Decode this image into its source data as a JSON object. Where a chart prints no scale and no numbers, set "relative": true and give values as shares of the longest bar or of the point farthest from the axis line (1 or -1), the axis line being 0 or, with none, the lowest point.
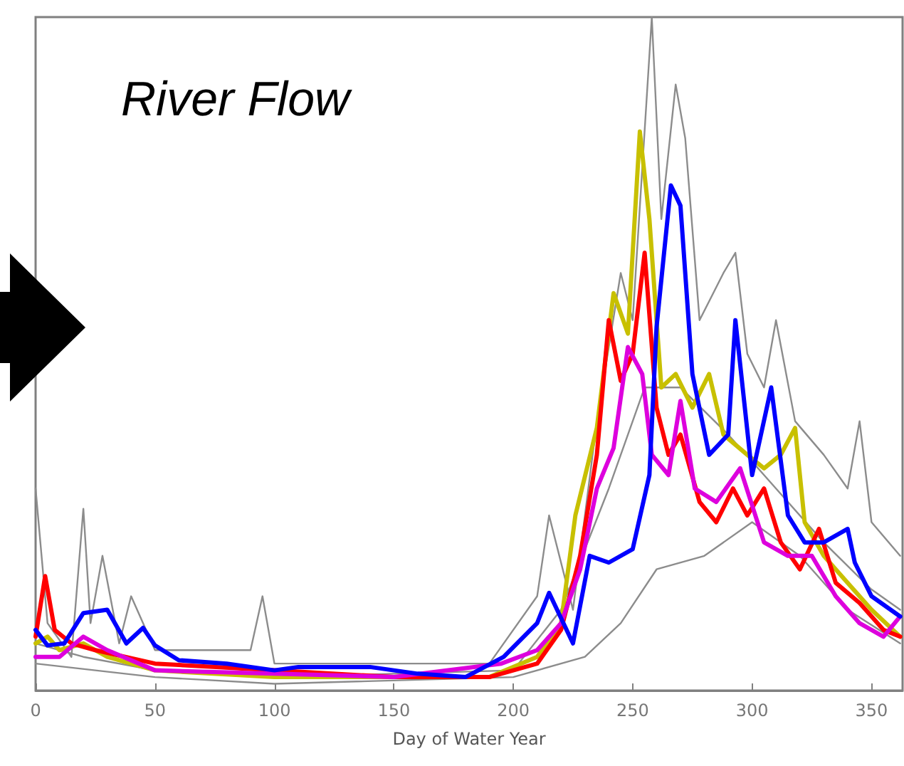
{
  "chart_data": {
    "type": "line",
    "title": "River Flow",
    "xlabel": "Day of Water Year",
    "relative": true,
    "xlim": [
      0,
      363
    ],
    "xticks": [
      0,
      50,
      100,
      150,
      200,
      250,
      300,
      350
    ],
    "tick_labels": "x",
    "marker": "none",
    "line_style": "solid",
    "series": [
      {
        "color": "#8c8c8c",
        "x": [
          0,
          5,
          15,
          20,
          23,
          28,
          35,
          40,
          50,
          90,
          95,
          100,
          150,
          190,
          210,
          215,
          225,
          235,
          245,
          250,
          258,
          262,
          268,
          272,
          278,
          288,
          293,
          298,
          305,
          310,
          318,
          330,
          340,
          345,
          350,
          362
        ],
        "values": [
          0.3,
          0.1,
          0.05,
          0.27,
          0.1,
          0.2,
          0.07,
          0.14,
          0.06,
          0.06,
          0.14,
          0.04,
          0.04,
          0.04,
          0.14,
          0.26,
          0.12,
          0.4,
          0.62,
          0.55,
          1.0,
          0.7,
          0.9,
          0.82,
          0.55,
          0.62,
          0.65,
          0.5,
          0.45,
          0.55,
          0.4,
          0.35,
          0.3,
          0.4,
          0.25,
          0.2
        ]
      },
      {
        "color": "#8c8c8c",
        "x": [
          0,
          20,
          50,
          100,
          200,
          220,
          240,
          255,
          270,
          290,
          310,
          330,
          350,
          362
        ],
        "values": [
          0.07,
          0.05,
          0.03,
          0.02,
          0.03,
          0.12,
          0.3,
          0.45,
          0.45,
          0.38,
          0.3,
          0.22,
          0.15,
          0.12
        ]
      },
      {
        "color": "#8c8c8c",
        "x": [
          0,
          50,
          100,
          200,
          230,
          245,
          260,
          280,
          300,
          320,
          340,
          362
        ],
        "values": [
          0.04,
          0.02,
          0.01,
          0.02,
          0.05,
          0.1,
          0.18,
          0.2,
          0.25,
          0.2,
          0.12,
          0.07
        ]
      },
      {
        "color": "#c8c000",
        "x": [
          0,
          5,
          10,
          20,
          30,
          50,
          100,
          150,
          190,
          210,
          220,
          226,
          235,
          242,
          248,
          253,
          257,
          262,
          268,
          275,
          282,
          288,
          298,
          305,
          312,
          318,
          322,
          330,
          340,
          350,
          362
        ],
        "values": [
          0.07,
          0.08,
          0.06,
          0.07,
          0.05,
          0.03,
          0.02,
          0.02,
          0.02,
          0.05,
          0.1,
          0.26,
          0.39,
          0.59,
          0.53,
          0.83,
          0.7,
          0.45,
          0.47,
          0.42,
          0.47,
          0.38,
          0.35,
          0.33,
          0.35,
          0.39,
          0.25,
          0.2,
          0.16,
          0.12,
          0.08
        ]
      },
      {
        "color": "#ff0000",
        "x": [
          0,
          4,
          8,
          15,
          25,
          50,
          100,
          150,
          190,
          210,
          220,
          228,
          235,
          240,
          245,
          250,
          255,
          260,
          265,
          270,
          278,
          285,
          292,
          298,
          305,
          312,
          320,
          328,
          335,
          345,
          355,
          362
        ],
        "values": [
          0.08,
          0.17,
          0.09,
          0.07,
          0.06,
          0.04,
          0.03,
          0.02,
          0.02,
          0.04,
          0.09,
          0.2,
          0.35,
          0.55,
          0.46,
          0.5,
          0.65,
          0.42,
          0.35,
          0.38,
          0.28,
          0.25,
          0.3,
          0.26,
          0.3,
          0.22,
          0.18,
          0.24,
          0.16,
          0.13,
          0.09,
          0.08
        ]
      },
      {
        "color": "#dd00dd",
        "x": [
          0,
          10,
          20,
          30,
          50,
          100,
          150,
          195,
          210,
          220,
          228,
          235,
          242,
          248,
          254,
          258,
          265,
          270,
          276,
          285,
          295,
          305,
          315,
          325,
          335,
          345,
          355,
          362
        ],
        "values": [
          0.05,
          0.05,
          0.08,
          0.06,
          0.03,
          0.025,
          0.02,
          0.04,
          0.06,
          0.1,
          0.18,
          0.3,
          0.36,
          0.51,
          0.47,
          0.35,
          0.32,
          0.43,
          0.3,
          0.28,
          0.33,
          0.22,
          0.2,
          0.2,
          0.14,
          0.1,
          0.08,
          0.11
        ]
      },
      {
        "color": "#0000ff",
        "x": [
          0,
          5,
          12,
          20,
          30,
          38,
          45,
          50,
          60,
          80,
          100,
          110,
          140,
          160,
          180,
          196,
          210,
          215,
          225,
          232,
          240,
          250,
          257,
          260,
          266,
          270,
          275,
          282,
          290,
          293,
          300,
          308,
          315,
          322,
          330,
          340,
          343,
          350,
          362
        ],
        "values": [
          0.09,
          0.067,
          0.07,
          0.115,
          0.12,
          0.07,
          0.093,
          0.067,
          0.045,
          0.04,
          0.03,
          0.035,
          0.035,
          0.025,
          0.02,
          0.05,
          0.1,
          0.145,
          0.07,
          0.2,
          0.19,
          0.21,
          0.32,
          0.54,
          0.75,
          0.72,
          0.47,
          0.35,
          0.38,
          0.55,
          0.32,
          0.45,
          0.26,
          0.22,
          0.22,
          0.24,
          0.19,
          0.14,
          0.11
        ]
      }
    ]
  }
}
